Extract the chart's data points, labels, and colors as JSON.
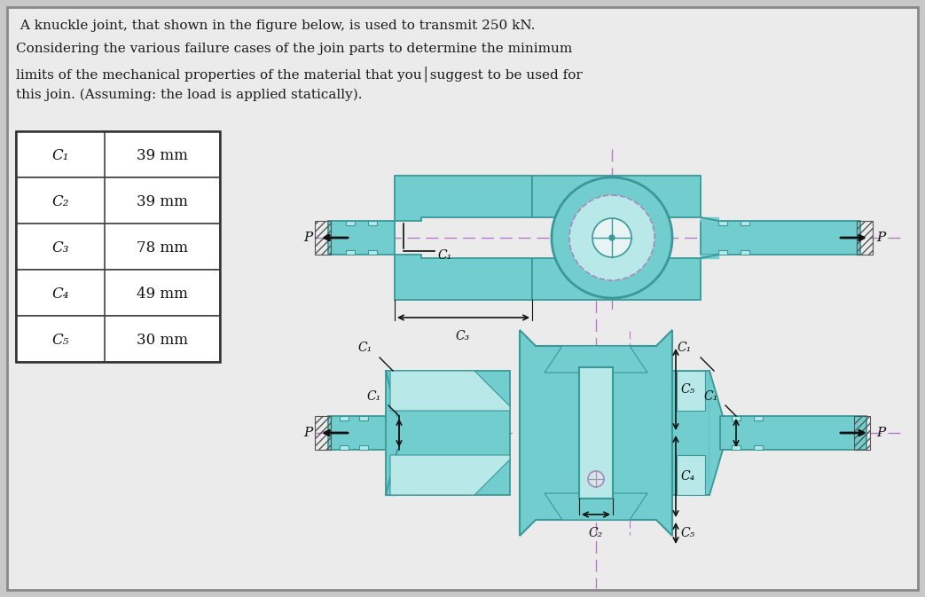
{
  "background_color": "#c8c8c8",
  "panel_color": "#ebebeb",
  "text_color": "#1a1a1a",
  "title_text": "A knuckle joint, that shown in the figure below, is used to transmit 250 kN.\nConsidering the various failure cases of the join parts to determine the minimum\nlimits of the mechanical properties of the material that you│suggest to be used for\nthis join. (Assuming: the load is applied statically).",
  "table_labels": [
    "c₁",
    "c₂",
    "c₃",
    "c₄",
    "c₅"
  ],
  "table_values": [
    "39 mm",
    "39 mm",
    "78 mm",
    "49 mm",
    "30 mm"
  ],
  "cyan_color": "#72cece",
  "cyan_edge": "#3a9898",
  "cyan_inner": "#b8e8e8",
  "dashed_color": "#b878c8",
  "dim_color": "#111111",
  "panel_border": "#888888"
}
